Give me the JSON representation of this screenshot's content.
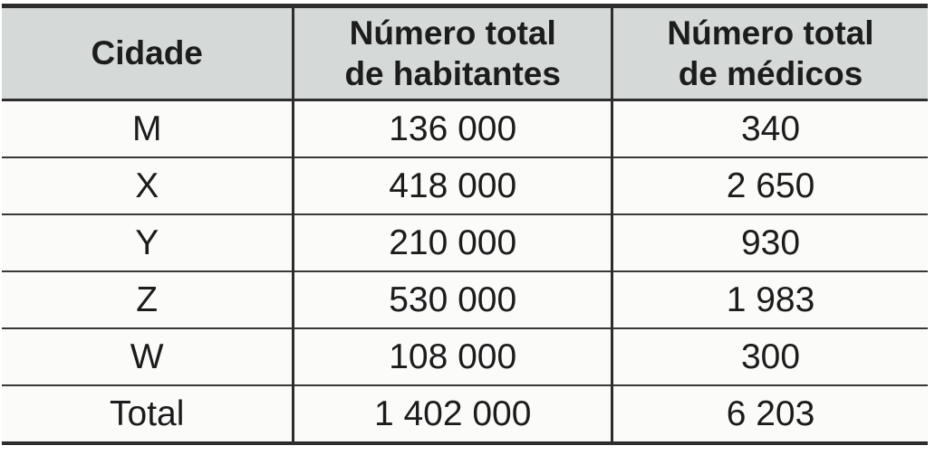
{
  "chart_data": {
    "type": "table",
    "title": "",
    "columns": [
      "Cidade",
      "Número total de habitantes",
      "Número total de médicos"
    ],
    "rows": [
      [
        "M",
        "136 000",
        "340"
      ],
      [
        "X",
        "418 000",
        "2 650"
      ],
      [
        "Y",
        "210 000",
        "930"
      ],
      [
        "Z",
        "530 000",
        "1 983"
      ],
      [
        "W",
        "108 000",
        "300"
      ],
      [
        "Total",
        "1 402 000",
        "6 203"
      ]
    ]
  },
  "table": {
    "headers": [
      "Cidade",
      "Número total\nde habitantes",
      "Número total\nde médicos"
    ]
  },
  "colors": {
    "header_bg": "#d5d9d7",
    "body_bg": "#fbfbfa",
    "border": "#2d2d2d",
    "text": "#1c1c1c"
  }
}
